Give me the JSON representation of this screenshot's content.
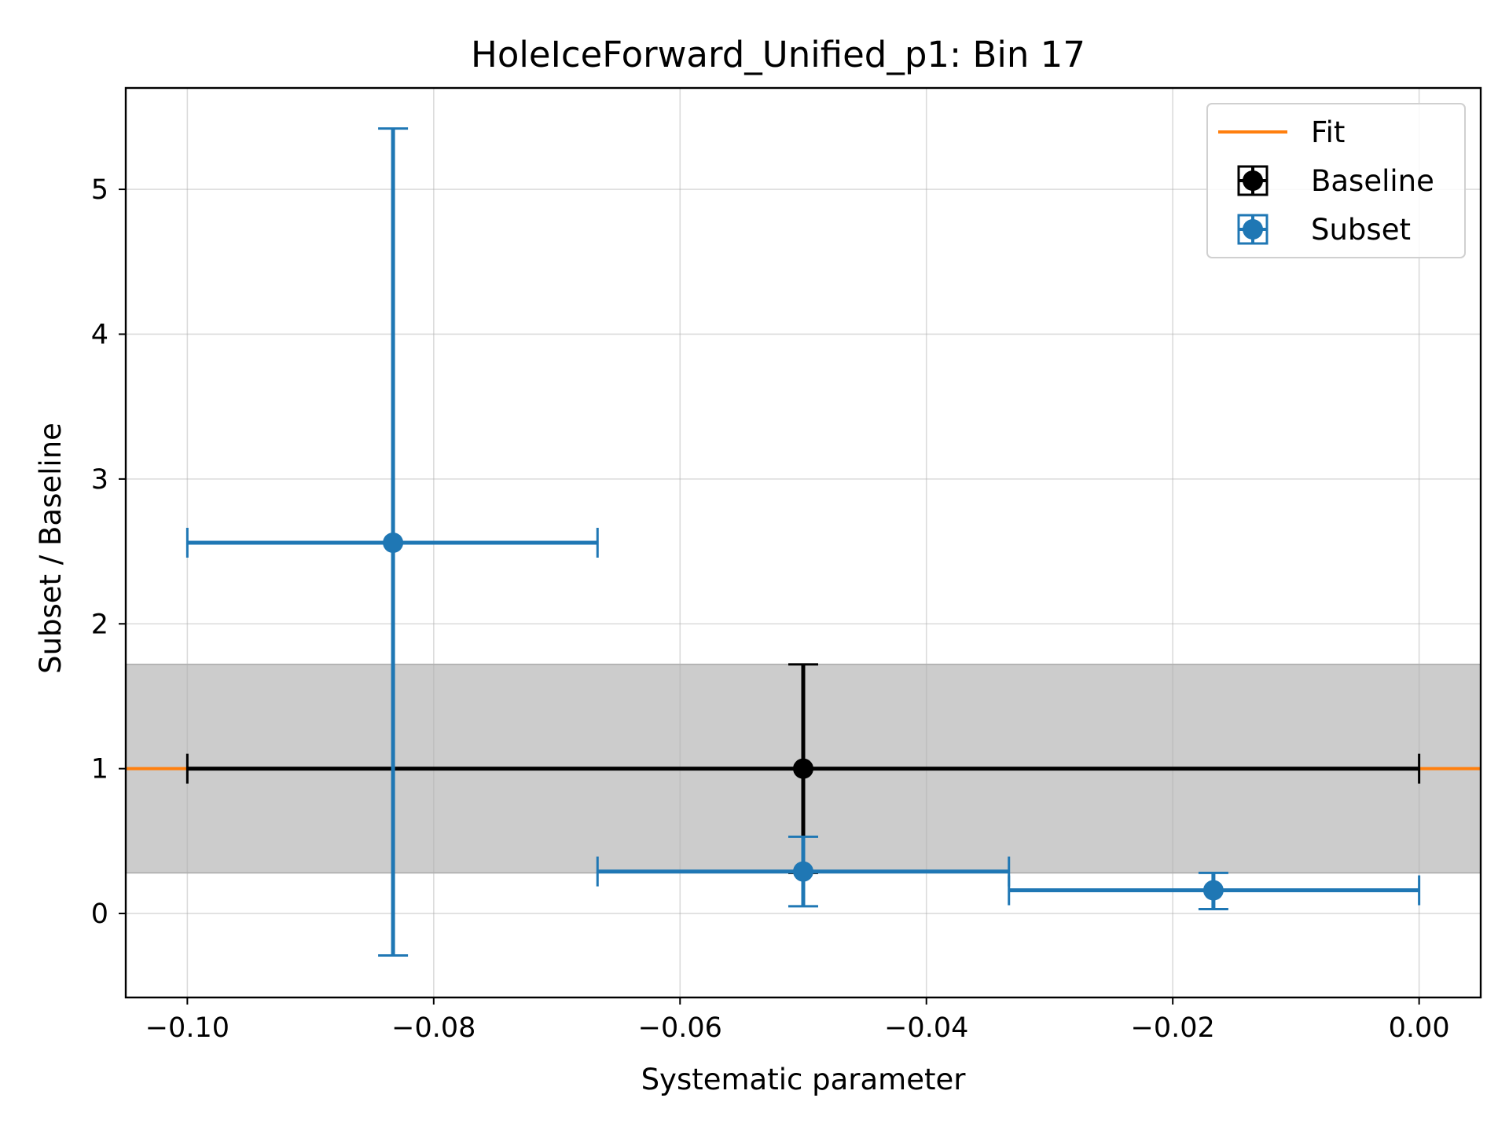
{
  "chart_data": {
    "type": "scatter",
    "title": "HoleIceForward_Unified_p1: Bin 17",
    "xlabel": "Systematic parameter",
    "ylabel": "Subset / Baseline",
    "xlim": [
      -0.105,
      0.005
    ],
    "ylim": [
      -0.58,
      5.7
    ],
    "x_ticks": [
      -0.1,
      -0.08,
      -0.06,
      -0.04,
      -0.02,
      0.0
    ],
    "x_tick_labels": [
      "−0.10",
      "−0.08",
      "−0.06",
      "−0.04",
      "−0.02",
      "0.00"
    ],
    "y_ticks": [
      0,
      1,
      2,
      3,
      4,
      5
    ],
    "y_tick_labels": [
      "0",
      "1",
      "2",
      "3",
      "4",
      "5"
    ],
    "grid": true,
    "legend_position": "top-right",
    "band": {
      "y_low": 0.28,
      "y_high": 1.72,
      "color": "#cccccc"
    },
    "series": [
      {
        "name": "Fit",
        "kind": "line",
        "color": "#ff7f0e",
        "x": [
          -0.105,
          0.005
        ],
        "y": [
          1.0,
          1.0
        ]
      },
      {
        "name": "Baseline",
        "kind": "errorbar",
        "color": "#000000",
        "points": [
          {
            "x": -0.05,
            "y": 1.0,
            "x_low": -0.1,
            "x_high": 0.0,
            "y_low": 0.28,
            "y_high": 1.72
          }
        ]
      },
      {
        "name": "Subset",
        "kind": "errorbar",
        "color": "#1f77b4",
        "points": [
          {
            "x": -0.0833,
            "y": 2.56,
            "x_low": -0.1,
            "x_high": -0.0667,
            "y_low": -0.29,
            "y_high": 5.42
          },
          {
            "x": -0.05,
            "y": 0.29,
            "x_low": -0.0667,
            "x_high": -0.0333,
            "y_low": 0.05,
            "y_high": 0.53
          },
          {
            "x": -0.0167,
            "y": 0.16,
            "x_low": -0.0333,
            "x_high": 0.0,
            "y_low": 0.03,
            "y_high": 0.28
          }
        ]
      }
    ]
  }
}
